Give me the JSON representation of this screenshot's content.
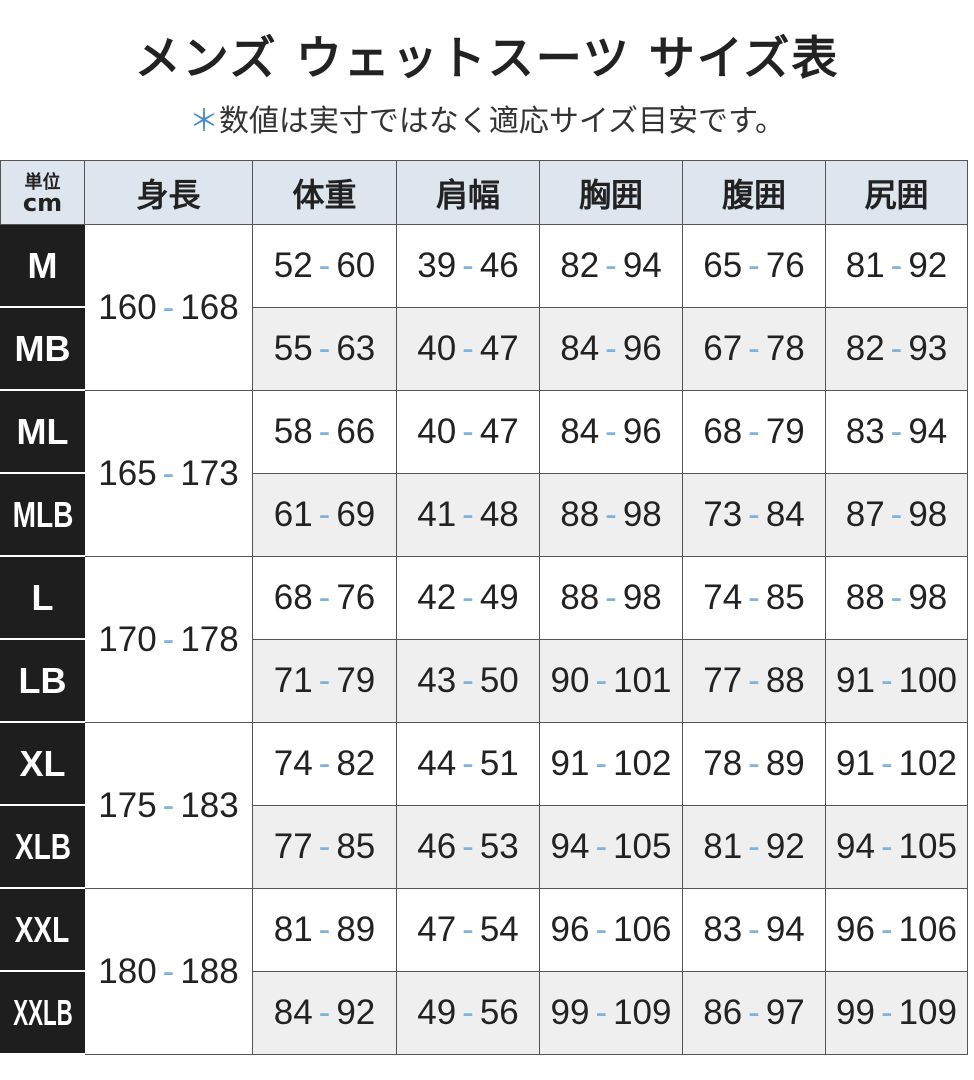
{
  "header": {
    "title": "メンズ ウェットスーツ サイズ表",
    "note_mark": "＊",
    "note": "数値は実寸ではなく適応サイズ目安です。"
  },
  "table": {
    "unit_label": "単位",
    "unit": "cm",
    "height_column": "身長",
    "columns": [
      "体重",
      "肩幅",
      "胸囲",
      "腹囲",
      "尻囲"
    ],
    "separator": "-",
    "groups": [
      {
        "height": [
          160,
          168
        ],
        "rows": [
          {
            "size": "M",
            "values": [
              [
                52,
                60
              ],
              [
                39,
                46
              ],
              [
                82,
                94
              ],
              [
                65,
                76
              ],
              [
                81,
                92
              ]
            ]
          },
          {
            "size": "MB",
            "values": [
              [
                55,
                63
              ],
              [
                40,
                47
              ],
              [
                84,
                96
              ],
              [
                67,
                78
              ],
              [
                82,
                93
              ]
            ]
          }
        ]
      },
      {
        "height": [
          165,
          173
        ],
        "rows": [
          {
            "size": "ML",
            "values": [
              [
                58,
                66
              ],
              [
                40,
                47
              ],
              [
                84,
                96
              ],
              [
                68,
                79
              ],
              [
                83,
                94
              ]
            ]
          },
          {
            "size": "MLB",
            "values": [
              [
                61,
                69
              ],
              [
                41,
                48
              ],
              [
                88,
                98
              ],
              [
                73,
                84
              ],
              [
                87,
                98
              ]
            ]
          }
        ]
      },
      {
        "height": [
          170,
          178
        ],
        "rows": [
          {
            "size": "L",
            "values": [
              [
                68,
                76
              ],
              [
                42,
                49
              ],
              [
                88,
                98
              ],
              [
                74,
                85
              ],
              [
                88,
                98
              ]
            ]
          },
          {
            "size": "LB",
            "values": [
              [
                71,
                79
              ],
              [
                43,
                50
              ],
              [
                90,
                101
              ],
              [
                77,
                88
              ],
              [
                91,
                100
              ]
            ]
          }
        ]
      },
      {
        "height": [
          175,
          183
        ],
        "rows": [
          {
            "size": "XL",
            "values": [
              [
                74,
                82
              ],
              [
                44,
                51
              ],
              [
                91,
                102
              ],
              [
                78,
                89
              ],
              [
                91,
                102
              ]
            ]
          },
          {
            "size": "XLB",
            "values": [
              [
                77,
                85
              ],
              [
                46,
                53
              ],
              [
                94,
                105
              ],
              [
                81,
                92
              ],
              [
                94,
                105
              ]
            ]
          }
        ]
      },
      {
        "height": [
          180,
          188
        ],
        "rows": [
          {
            "size": "XXL",
            "values": [
              [
                81,
                89
              ],
              [
                47,
                54
              ],
              [
                96,
                106
              ],
              [
                83,
                94
              ],
              [
                96,
                106
              ]
            ]
          },
          {
            "size": "XXLB",
            "values": [
              [
                84,
                92
              ],
              [
                49,
                56
              ],
              [
                99,
                109
              ],
              [
                86,
                97
              ],
              [
                99,
                109
              ]
            ]
          }
        ]
      }
    ]
  }
}
